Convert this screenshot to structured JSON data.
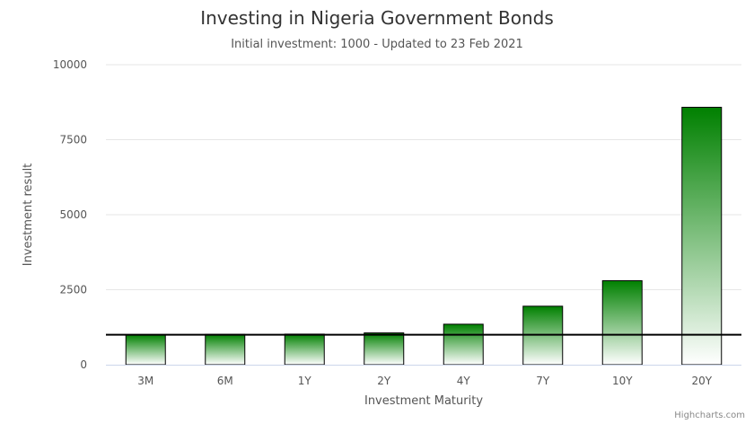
{
  "chart_data": {
    "type": "bar",
    "title": "Investing in Nigeria Government Bonds",
    "subtitle": "Initial investment: 1000 - Updated to 23 Feb 2021",
    "xlabel": "Investment Maturity",
    "ylabel": "Investment result",
    "categories": [
      "3M",
      "6M",
      "1Y",
      "2Y",
      "4Y",
      "7Y",
      "10Y",
      "20Y"
    ],
    "values": [
      1000,
      1010,
      1020,
      1060,
      1350,
      1950,
      2800,
      8580
    ],
    "ylim": [
      0,
      10000
    ],
    "yticks": [
      0,
      2500,
      5000,
      7500,
      10000
    ],
    "reference_line": 1000,
    "grid": true,
    "legend": "none",
    "bar_color_top": "#008000",
    "bar_color_bottom": "#ffffff",
    "bar_border": "#000000"
  },
  "credit": "Highcharts.com"
}
